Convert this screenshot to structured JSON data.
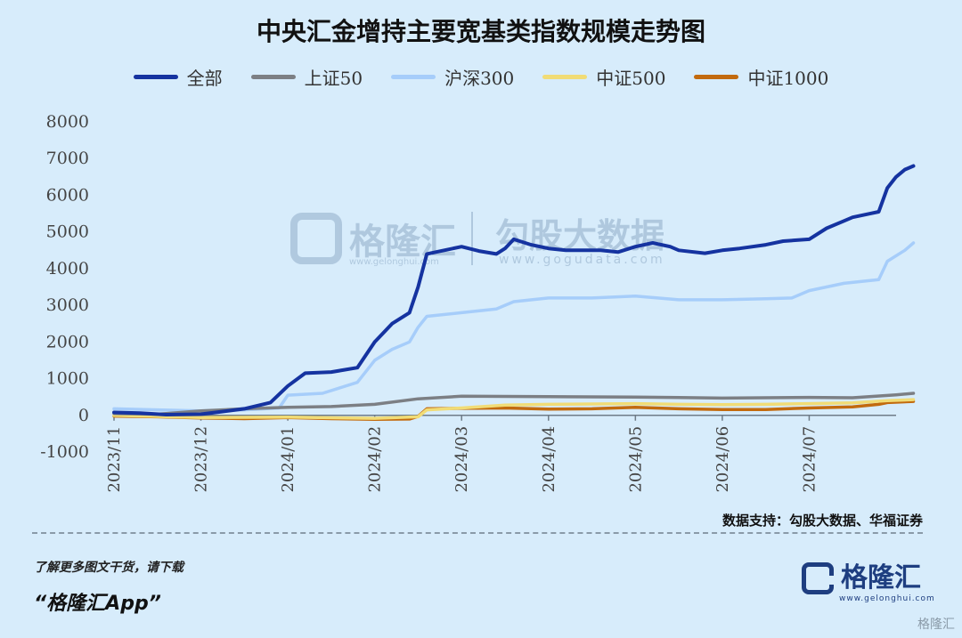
{
  "chart_data": {
    "type": "line",
    "title": "中央汇金增持主要宽基类指数规模走势图",
    "ylim": [
      -1000,
      8000
    ],
    "yticks": [
      -1000,
      0,
      1000,
      2000,
      3000,
      4000,
      5000,
      6000,
      7000,
      8000
    ],
    "xticks": [
      "2023/11",
      "2023/12",
      "2024/01",
      "2024/02",
      "2024/03",
      "2024/04",
      "2024/05",
      "2024/06",
      "2024/07"
    ],
    "x_range": [
      0,
      9
    ],
    "legend_position": "top",
    "series": [
      {
        "name": "全部",
        "color": "#1533a0",
        "width": 4,
        "points": [
          [
            0,
            80
          ],
          [
            0.3,
            60
          ],
          [
            0.6,
            20
          ],
          [
            1.0,
            30
          ],
          [
            1.2,
            90
          ],
          [
            1.5,
            180
          ],
          [
            1.8,
            350
          ],
          [
            2.0,
            800
          ],
          [
            2.2,
            1150
          ],
          [
            2.5,
            1180
          ],
          [
            2.8,
            1300
          ],
          [
            3.0,
            2000
          ],
          [
            3.2,
            2500
          ],
          [
            3.4,
            2800
          ],
          [
            3.5,
            3500
          ],
          [
            3.6,
            4400
          ],
          [
            3.8,
            4500
          ],
          [
            4.0,
            4600
          ],
          [
            4.2,
            4480
          ],
          [
            4.4,
            4400
          ],
          [
            4.5,
            4550
          ],
          [
            4.6,
            4800
          ],
          [
            4.8,
            4650
          ],
          [
            5.0,
            4550
          ],
          [
            5.2,
            4500
          ],
          [
            5.4,
            4500
          ],
          [
            5.6,
            4500
          ],
          [
            5.8,
            4450
          ],
          [
            6.0,
            4600
          ],
          [
            6.2,
            4700
          ],
          [
            6.4,
            4600
          ],
          [
            6.5,
            4500
          ],
          [
            6.8,
            4420
          ],
          [
            7.0,
            4500
          ],
          [
            7.2,
            4550
          ],
          [
            7.5,
            4650
          ],
          [
            7.7,
            4750
          ],
          [
            8.0,
            4800
          ],
          [
            8.2,
            5100
          ],
          [
            8.4,
            5300
          ],
          [
            8.5,
            5400
          ],
          [
            8.7,
            5500
          ],
          [
            8.8,
            5550
          ],
          [
            8.9,
            6200
          ],
          [
            9.0,
            6500
          ],
          [
            9.1,
            6700
          ],
          [
            9.2,
            6800
          ]
        ]
      },
      {
        "name": "上证50",
        "color": "#7c7f84",
        "width": 3.5,
        "points": [
          [
            0,
            50
          ],
          [
            0.5,
            30
          ],
          [
            1.0,
            120
          ],
          [
            1.5,
            180
          ],
          [
            2.0,
            220
          ],
          [
            2.5,
            240
          ],
          [
            3.0,
            300
          ],
          [
            3.5,
            450
          ],
          [
            4.0,
            520
          ],
          [
            5.0,
            510
          ],
          [
            6.0,
            500
          ],
          [
            7.0,
            470
          ],
          [
            8.0,
            490
          ],
          [
            8.5,
            480
          ],
          [
            9.0,
            560
          ],
          [
            9.2,
            600
          ]
        ]
      },
      {
        "name": "沪深300",
        "color": "#a6cdfa",
        "width": 3.5,
        "points": [
          [
            0,
            180
          ],
          [
            0.5,
            150
          ],
          [
            1.0,
            120
          ],
          [
            1.5,
            150
          ],
          [
            1.9,
            200
          ],
          [
            2.0,
            550
          ],
          [
            2.4,
            600
          ],
          [
            2.8,
            900
          ],
          [
            3.0,
            1500
          ],
          [
            3.2,
            1800
          ],
          [
            3.4,
            2000
          ],
          [
            3.5,
            2400
          ],
          [
            3.6,
            2700
          ],
          [
            4.0,
            2800
          ],
          [
            4.4,
            2900
          ],
          [
            4.6,
            3100
          ],
          [
            5.0,
            3200
          ],
          [
            5.5,
            3200
          ],
          [
            6.0,
            3250
          ],
          [
            6.5,
            3150
          ],
          [
            7.0,
            3150
          ],
          [
            7.5,
            3180
          ],
          [
            7.8,
            3200
          ],
          [
            8.0,
            3400
          ],
          [
            8.2,
            3500
          ],
          [
            8.4,
            3600
          ],
          [
            8.8,
            3700
          ],
          [
            8.9,
            4200
          ],
          [
            9.1,
            4500
          ],
          [
            9.2,
            4700
          ]
        ]
      },
      {
        "name": "中证500",
        "color": "#f1dc76",
        "width": 3.5,
        "points": [
          [
            0,
            0
          ],
          [
            1.0,
            -60
          ],
          [
            2.0,
            -50
          ],
          [
            3.0,
            -80
          ],
          [
            3.5,
            -40
          ],
          [
            3.6,
            150
          ],
          [
            4.0,
            200
          ],
          [
            4.5,
            280
          ],
          [
            5.0,
            300
          ],
          [
            6.0,
            320
          ],
          [
            6.5,
            300
          ],
          [
            7.0,
            290
          ],
          [
            7.5,
            300
          ],
          [
            8.0,
            320
          ],
          [
            8.5,
            340
          ],
          [
            8.9,
            400
          ],
          [
            9.2,
            430
          ]
        ]
      },
      {
        "name": "中证1000",
        "color": "#c26a0e",
        "width": 3.5,
        "points": [
          [
            0,
            -20
          ],
          [
            0.5,
            -40
          ],
          [
            1.0,
            -70
          ],
          [
            1.5,
            -90
          ],
          [
            2.0,
            -60
          ],
          [
            2.5,
            -90
          ],
          [
            3.0,
            -110
          ],
          [
            3.4,
            -100
          ],
          [
            3.5,
            -30
          ],
          [
            3.6,
            180
          ],
          [
            4.0,
            190
          ],
          [
            4.5,
            200
          ],
          [
            5.0,
            170
          ],
          [
            5.5,
            180
          ],
          [
            6.0,
            220
          ],
          [
            6.5,
            180
          ],
          [
            7.0,
            160
          ],
          [
            7.5,
            160
          ],
          [
            8.0,
            200
          ],
          [
            8.5,
            230
          ],
          [
            8.8,
            300
          ],
          [
            8.9,
            350
          ],
          [
            9.2,
            380
          ]
        ]
      }
    ]
  },
  "watermark": {
    "left_brand": "格隆汇",
    "left_url": "www.gelonghui.com",
    "right_brand": "勾股大数据",
    "right_url": "www.gogudata.com"
  },
  "source_text": "数据支持：勾股大数据、华福证券",
  "promo_line1": "了解更多图文干货，请下载",
  "promo_line2": "“格隆汇App”",
  "brand": {
    "name": "格隆汇",
    "url": "www.gelonghui.com",
    "logo_icon": "g-logo-icon"
  },
  "corner_watermark": "格隆汇"
}
